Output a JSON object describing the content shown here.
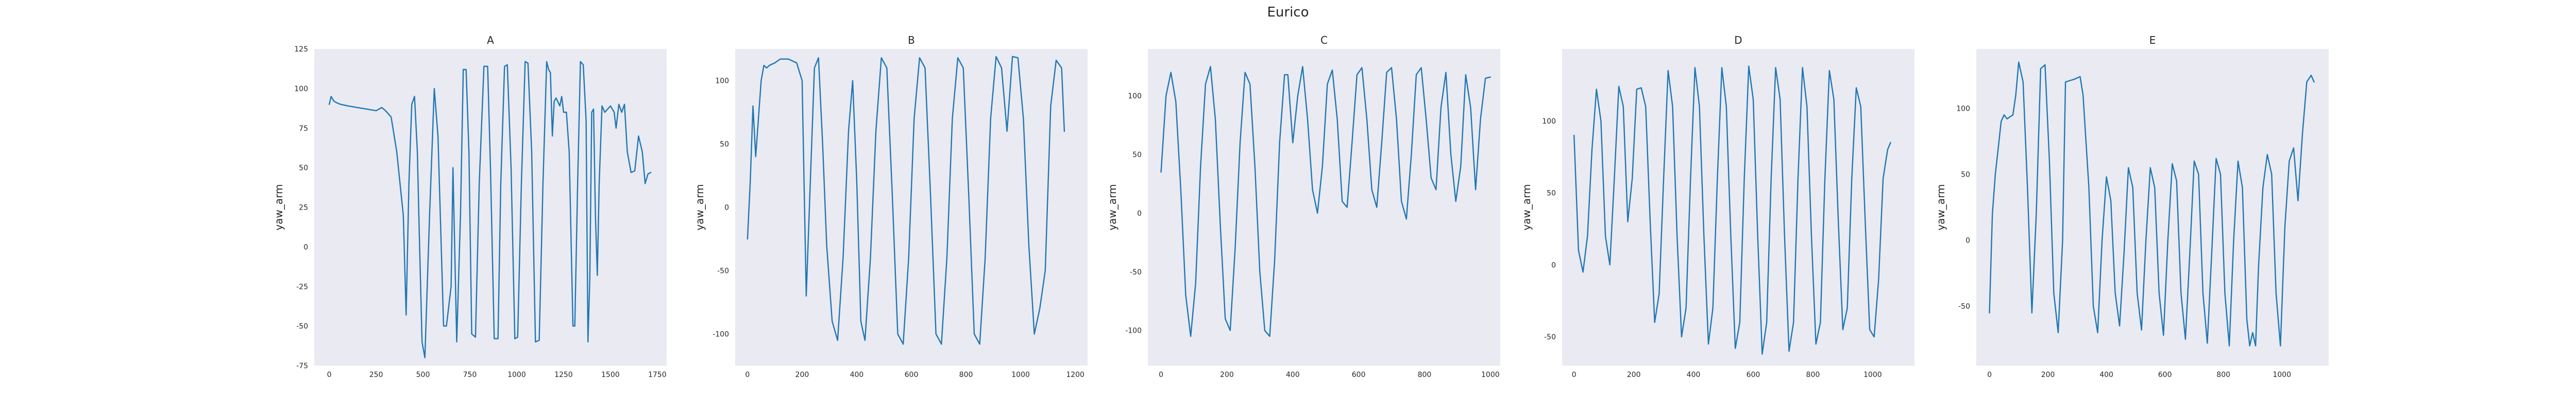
{
  "chart_data": {
    "type": "line",
    "suptitle": "Eurico",
    "grid": false,
    "line_color": "#1f77b4",
    "background_color": "#eaeaf2",
    "panels": [
      {
        "title": "A",
        "ylabel": "yaw_arm",
        "xlim": [
          -80,
          1800
        ],
        "ylim": [
          -75,
          125
        ],
        "xticks": [
          0,
          250,
          500,
          750,
          1000,
          1250,
          1500,
          1750
        ],
        "yticks": [
          -75,
          -50,
          -25,
          0,
          25,
          50,
          75,
          100,
          125
        ],
        "x": [
          0,
          10,
          25,
          40,
          60,
          100,
          150,
          200,
          250,
          280,
          300,
          330,
          360,
          395,
          410,
          425,
          440,
          455,
          470,
          480,
          495,
          510,
          535,
          560,
          580,
          610,
          625,
          650,
          660,
          680,
          700,
          715,
          730,
          745,
          760,
          780,
          800,
          825,
          845,
          860,
          880,
          900,
          915,
          935,
          950,
          970,
          990,
          1005,
          1025,
          1045,
          1060,
          1080,
          1100,
          1120,
          1140,
          1160,
          1170,
          1180,
          1190,
          1200,
          1210,
          1230,
          1240,
          1250,
          1265,
          1280,
          1300,
          1310,
          1325,
          1340,
          1355,
          1370,
          1380,
          1390,
          1400,
          1410,
          1420,
          1430,
          1440,
          1455,
          1470,
          1500,
          1520,
          1530,
          1545,
          1560,
          1575,
          1590,
          1610,
          1630,
          1650,
          1670,
          1685,
          1700,
          1715
        ],
        "y": [
          90,
          95,
          92,
          91,
          90,
          89,
          88,
          87,
          86,
          88,
          86,
          82,
          60,
          20,
          -43,
          40,
          90,
          95,
          60,
          10,
          -60,
          -70,
          20,
          100,
          70,
          -50,
          -50,
          -25,
          50,
          -60,
          20,
          112,
          112,
          60,
          -55,
          -57,
          40,
          114,
          114,
          50,
          -58,
          -58,
          40,
          114,
          115,
          50,
          -58,
          -57,
          40,
          117,
          116,
          60,
          -60,
          -59,
          40,
          117,
          112,
          110,
          70,
          92,
          94,
          89,
          95,
          85,
          85,
          60,
          -50,
          -50,
          40,
          117,
          115,
          80,
          -60,
          -20,
          85,
          87,
          20,
          -18,
          40,
          89,
          85,
          89,
          85,
          75,
          90,
          85,
          90,
          60,
          47,
          48,
          70,
          60,
          40,
          46,
          47
        ]
      },
      {
        "title": "B",
        "ylabel": "yaw_arm",
        "xlim": [
          -45,
          1245
        ],
        "ylim": [
          -125,
          125
        ],
        "xticks": [
          0,
          200,
          400,
          600,
          800,
          1000,
          1200
        ],
        "yticks": [
          -100,
          -50,
          0,
          50,
          100
        ],
        "x": [
          0,
          10,
          20,
          30,
          40,
          50,
          60,
          70,
          80,
          90,
          100,
          120,
          150,
          180,
          200,
          215,
          230,
          245,
          260,
          275,
          290,
          310,
          330,
          350,
          370,
          385,
          400,
          415,
          430,
          450,
          470,
          490,
          510,
          530,
          550,
          570,
          590,
          610,
          630,
          650,
          670,
          690,
          710,
          730,
          750,
          770,
          790,
          810,
          830,
          850,
          870,
          890,
          910,
          930,
          950,
          970,
          990,
          1010,
          1030,
          1050,
          1070,
          1090,
          1110,
          1130,
          1150,
          1160
        ],
        "y": [
          -25,
          20,
          80,
          40,
          70,
          100,
          112,
          110,
          112,
          113,
          114,
          117,
          117,
          114,
          100,
          -70,
          20,
          110,
          118,
          50,
          -30,
          -90,
          -105,
          -40,
          60,
          100,
          20,
          -90,
          -105,
          -40,
          60,
          118,
          110,
          10,
          -100,
          -108,
          -40,
          70,
          118,
          110,
          10,
          -100,
          -108,
          -40,
          70,
          118,
          110,
          10,
          -100,
          -108,
          -40,
          70,
          119,
          110,
          60,
          119,
          118,
          70,
          -30,
          -100,
          -80,
          -50,
          80,
          116,
          110,
          60
        ]
      },
      {
        "title": "C",
        "ylabel": "yaw_arm",
        "xlim": [
          -40,
          1030
        ],
        "ylim": [
          -130,
          140
        ],
        "xticks": [
          0,
          200,
          400,
          600,
          800,
          1000
        ],
        "yticks": [
          -100,
          -50,
          0,
          50,
          100
        ],
        "x": [
          0,
          15,
          30,
          45,
          60,
          75,
          90,
          105,
          120,
          135,
          150,
          165,
          180,
          195,
          210,
          225,
          240,
          255,
          270,
          285,
          300,
          315,
          330,
          345,
          360,
          375,
          385,
          400,
          415,
          430,
          445,
          460,
          475,
          490,
          505,
          520,
          535,
          550,
          565,
          580,
          595,
          610,
          625,
          640,
          655,
          670,
          685,
          700,
          715,
          730,
          745,
          760,
          775,
          790,
          805,
          820,
          835,
          850,
          865,
          880,
          895,
          910,
          925,
          940,
          955,
          970,
          985,
          1000
        ],
        "y": [
          35,
          100,
          120,
          95,
          20,
          -70,
          -105,
          -60,
          40,
          110,
          125,
          80,
          -10,
          -90,
          -100,
          -30,
          60,
          120,
          110,
          40,
          -50,
          -100,
          -105,
          -40,
          60,
          118,
          118,
          60,
          100,
          125,
          80,
          20,
          0,
          40,
          110,
          122,
          80,
          10,
          5,
          60,
          118,
          124,
          80,
          20,
          5,
          60,
          120,
          124,
          80,
          10,
          -5,
          50,
          118,
          124,
          80,
          30,
          20,
          90,
          120,
          50,
          10,
          40,
          118,
          90,
          20,
          80,
          115,
          116
        ]
      },
      {
        "title": "D",
        "ylabel": "yaw_arm",
        "xlim": [
          -40,
          1140
        ],
        "ylim": [
          -70,
          150
        ],
        "xticks": [
          0,
          200,
          400,
          600,
          800,
          1000
        ],
        "yticks": [
          -50,
          0,
          50,
          100
        ],
        "x": [
          0,
          15,
          30,
          45,
          60,
          75,
          90,
          105,
          120,
          135,
          150,
          165,
          180,
          195,
          210,
          225,
          240,
          255,
          270,
          285,
          300,
          315,
          330,
          345,
          360,
          375,
          390,
          405,
          420,
          435,
          450,
          465,
          480,
          495,
          510,
          525,
          540,
          555,
          570,
          585,
          600,
          615,
          630,
          645,
          660,
          675,
          690,
          705,
          720,
          735,
          750,
          765,
          780,
          795,
          810,
          825,
          840,
          855,
          870,
          885,
          900,
          915,
          930,
          945,
          960,
          975,
          990,
          1005,
          1020,
          1035,
          1050,
          1060
        ],
        "y": [
          90,
          10,
          -5,
          20,
          80,
          122,
          100,
          20,
          0,
          60,
          124,
          110,
          30,
          60,
          122,
          123,
          110,
          30,
          -40,
          -20,
          60,
          135,
          110,
          20,
          -50,
          -30,
          60,
          137,
          110,
          20,
          -55,
          -30,
          60,
          137,
          110,
          20,
          -58,
          -40,
          60,
          138,
          115,
          20,
          -62,
          -40,
          60,
          137,
          115,
          20,
          -60,
          -40,
          60,
          137,
          110,
          20,
          -55,
          -40,
          60,
          135,
          115,
          30,
          -45,
          -30,
          60,
          123,
          110,
          30,
          -45,
          -50,
          -10,
          60,
          80,
          85
        ]
      },
      {
        "title": "E",
        "ylabel": "yaw_arm",
        "xlim": [
          -45,
          1160
        ],
        "ylim": [
          -95,
          145
        ],
        "xticks": [
          0,
          200,
          400,
          600,
          800,
          1000
        ],
        "yticks": [
          -50,
          0,
          50,
          100
        ],
        "x": [
          0,
          10,
          20,
          30,
          40,
          50,
          60,
          80,
          90,
          100,
          115,
          130,
          145,
          160,
          175,
          190,
          205,
          220,
          235,
          250,
          260,
          275,
          290,
          310,
          320,
          340,
          355,
          370,
          385,
          400,
          415,
          430,
          445,
          460,
          475,
          490,
          505,
          520,
          535,
          550,
          565,
          580,
          595,
          610,
          625,
          640,
          655,
          670,
          685,
          700,
          715,
          730,
          745,
          760,
          775,
          790,
          805,
          820,
          835,
          850,
          865,
          880,
          890,
          900,
          910,
          920,
          935,
          950,
          965,
          980,
          995,
          1010,
          1025,
          1040,
          1055,
          1070,
          1085,
          1100,
          1110
        ],
        "y": [
          -55,
          20,
          50,
          70,
          90,
          95,
          92,
          95,
          110,
          135,
          120,
          40,
          -55,
          20,
          130,
          133,
          60,
          -40,
          -70,
          0,
          120,
          121,
          122,
          124,
          110,
          40,
          -50,
          -70,
          0,
          48,
          30,
          -40,
          -65,
          -10,
          55,
          40,
          -40,
          -68,
          0,
          55,
          40,
          -40,
          -72,
          0,
          58,
          45,
          -40,
          -75,
          -10,
          60,
          50,
          -40,
          -78,
          -10,
          62,
          50,
          -40,
          -80,
          0,
          60,
          40,
          -60,
          -80,
          -70,
          -80,
          -20,
          40,
          65,
          50,
          -40,
          -80,
          10,
          60,
          70,
          30,
          80,
          120,
          125,
          120
        ]
      }
    ]
  }
}
